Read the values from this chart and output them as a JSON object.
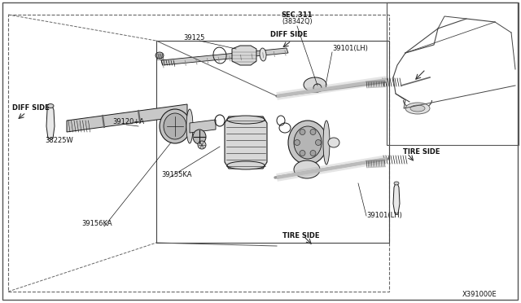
{
  "bg_color": "#ffffff",
  "line_color": "#1a1a1a",
  "text_color": "#111111",
  "gray_fill": "#d8d8d8",
  "light_fill": "#eeeeee",
  "fig_width": 6.4,
  "fig_height": 3.72,
  "labels": {
    "sec311_line1": "SEC.311",
    "sec311_line2": "(38342Q)",
    "diff_side_top": "DIFF SIDE",
    "diff_side_left": "DIFF SIDE",
    "tire_side_right": "TIRE SIDE",
    "tire_side_bottom": "TIRE SIDE",
    "part_39101_lh_top": "39101(LH)",
    "part_39101_lh_bot": "39101(LH)",
    "part_39125": "39125",
    "part_39155ka": "39155KA",
    "part_39120a": "39120+A",
    "part_38225w": "38225W",
    "part_39156ka": "39156KA",
    "diagram_code": "X391000E"
  }
}
